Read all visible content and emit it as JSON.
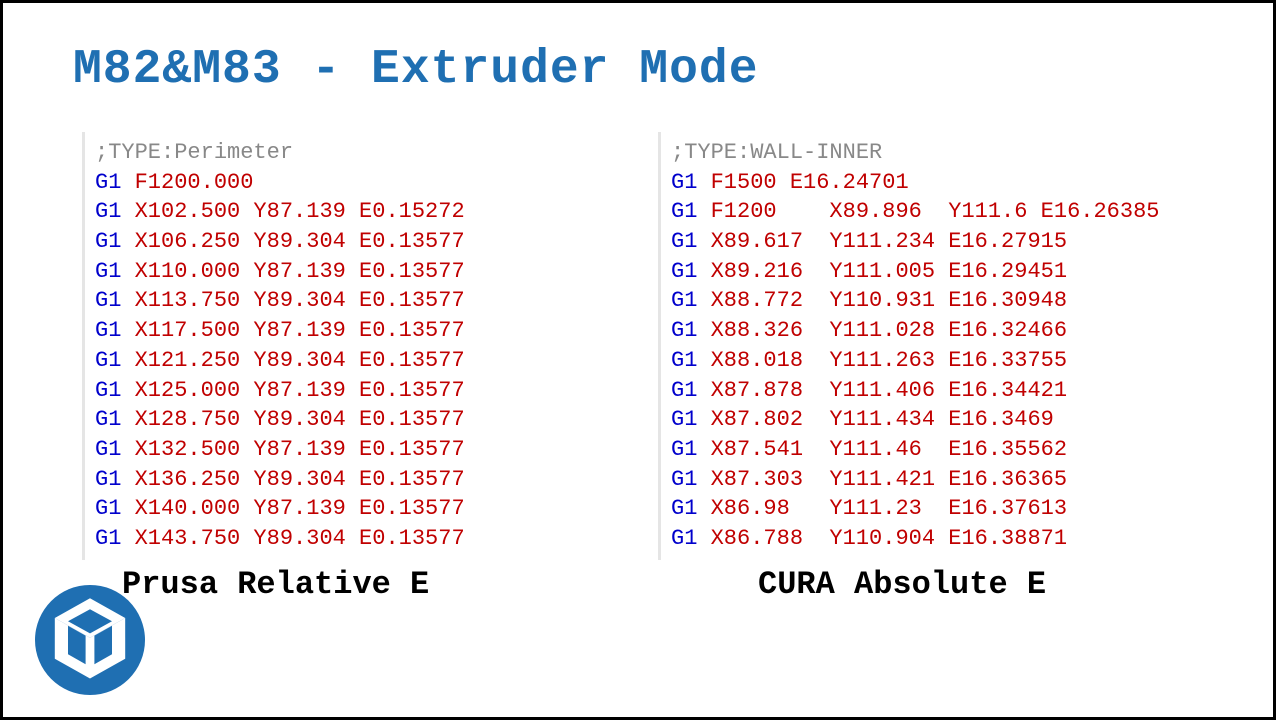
{
  "title": "M82&M83 - Extruder Mode",
  "colors": {
    "title": "#1f6fb2",
    "comment": "#888888",
    "command": "#0000cc",
    "param": "#c00000",
    "border_left": "#e5e5e5",
    "frame_border": "#000000",
    "background": "#ffffff",
    "logo_bg": "#1f6fb2",
    "logo_fg": "#ffffff"
  },
  "typography": {
    "family": "Courier New",
    "title_fontsize": 48,
    "code_fontsize": 22,
    "caption_fontsize": 32
  },
  "panel_left": {
    "caption": "Prusa Relative E",
    "lines": [
      {
        "kind": "comment",
        "text": ";TYPE:Perimeter"
      },
      {
        "kind": "gcode",
        "cmd": "G1",
        "params": "F1200.000"
      },
      {
        "kind": "gcode",
        "cmd": "G1",
        "params": "X102.500 Y87.139 E0.15272"
      },
      {
        "kind": "gcode",
        "cmd": "G1",
        "params": "X106.250 Y89.304 E0.13577"
      },
      {
        "kind": "gcode",
        "cmd": "G1",
        "params": "X110.000 Y87.139 E0.13577"
      },
      {
        "kind": "gcode",
        "cmd": "G1",
        "params": "X113.750 Y89.304 E0.13577"
      },
      {
        "kind": "gcode",
        "cmd": "G1",
        "params": "X117.500 Y87.139 E0.13577"
      },
      {
        "kind": "gcode",
        "cmd": "G1",
        "params": "X121.250 Y89.304 E0.13577"
      },
      {
        "kind": "gcode",
        "cmd": "G1",
        "params": "X125.000 Y87.139 E0.13577"
      },
      {
        "kind": "gcode",
        "cmd": "G1",
        "params": "X128.750 Y89.304 E0.13577"
      },
      {
        "kind": "gcode",
        "cmd": "G1",
        "params": "X132.500 Y87.139 E0.13577"
      },
      {
        "kind": "gcode",
        "cmd": "G1",
        "params": "X136.250 Y89.304 E0.13577"
      },
      {
        "kind": "gcode",
        "cmd": "G1",
        "params": "X140.000 Y87.139 E0.13577"
      },
      {
        "kind": "gcode",
        "cmd": "G1",
        "params": "X143.750 Y89.304 E0.13577"
      }
    ]
  },
  "panel_right": {
    "caption": "CURA Absolute E",
    "lines": [
      {
        "kind": "comment",
        "text": ";TYPE:WALL-INNER"
      },
      {
        "kind": "gcode",
        "cmd": "G1",
        "params": "F1500 E16.24701"
      },
      {
        "kind": "gcode",
        "cmd": "G1",
        "params": "F1200    X89.896  Y111.6 E16.26385"
      },
      {
        "kind": "gcode",
        "cmd": "G1",
        "params": "X89.617  Y111.234 E16.27915"
      },
      {
        "kind": "gcode",
        "cmd": "G1",
        "params": "X89.216  Y111.005 E16.29451"
      },
      {
        "kind": "gcode",
        "cmd": "G1",
        "params": "X88.772  Y110.931 E16.30948"
      },
      {
        "kind": "gcode",
        "cmd": "G1",
        "params": "X88.326  Y111.028 E16.32466"
      },
      {
        "kind": "gcode",
        "cmd": "G1",
        "params": "X88.018  Y111.263 E16.33755"
      },
      {
        "kind": "gcode",
        "cmd": "G1",
        "params": "X87.878  Y111.406 E16.34421"
      },
      {
        "kind": "gcode",
        "cmd": "G1",
        "params": "X87.802  Y111.434 E16.3469"
      },
      {
        "kind": "gcode",
        "cmd": "G1",
        "params": "X87.541  Y111.46  E16.35562"
      },
      {
        "kind": "gcode",
        "cmd": "G1",
        "params": "X87.303  Y111.421 E16.36365"
      },
      {
        "kind": "gcode",
        "cmd": "G1",
        "params": "X86.98   Y111.23  E16.37613"
      },
      {
        "kind": "gcode",
        "cmd": "G1",
        "params": "X86.788  Y110.904 E16.38871"
      }
    ]
  }
}
